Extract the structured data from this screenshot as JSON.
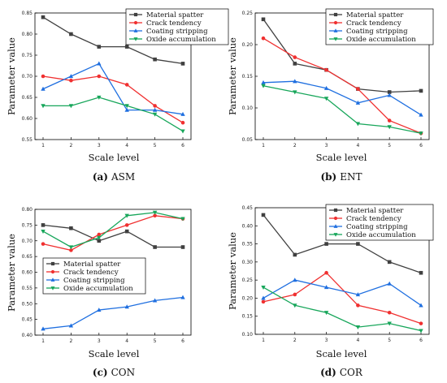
{
  "figure": {
    "legend": [
      "Material spatter",
      "Crack tendency",
      "Coating stripping",
      "Oxide accumulation"
    ],
    "series_colors": [
      "#404040",
      "#f03030",
      "#1f6fe0",
      "#17a65a"
    ]
  },
  "chart_data": [
    {
      "type": "line",
      "caption_letter": "(a)",
      "caption_name": "ASM",
      "xlabel": "Scale level",
      "ylabel": "Parameter value",
      "x": [
        1,
        2,
        3,
        4,
        5,
        6
      ],
      "ylim": [
        0.55,
        0.85
      ],
      "yticks": [
        "0.55",
        "0.60",
        "0.65",
        "0.70",
        "0.75",
        "0.80",
        "0.85"
      ],
      "yticks_values": [
        0.55,
        0.6,
        0.65,
        0.7,
        0.75,
        0.8,
        0.85
      ],
      "legend_position": "top-right",
      "grid": false,
      "series": [
        {
          "name": "Material spatter",
          "values": [
            0.84,
            0.8,
            0.77,
            0.77,
            0.74,
            0.73
          ]
        },
        {
          "name": "Crack tendency",
          "values": [
            0.7,
            0.69,
            0.7,
            0.68,
            0.63,
            0.59
          ]
        },
        {
          "name": "Coating stripping",
          "values": [
            0.67,
            0.7,
            0.73,
            0.62,
            0.62,
            0.61
          ]
        },
        {
          "name": "Oxide accumulation",
          "values": [
            0.63,
            0.63,
            0.65,
            0.63,
            0.61,
            0.57
          ]
        }
      ]
    },
    {
      "type": "line",
      "caption_letter": "(b)",
      "caption_name": "ENT",
      "xlabel": "Scale level",
      "ylabel": "Parameter value",
      "x": [
        1,
        2,
        3,
        4,
        5,
        6
      ],
      "ylim": [
        0.05,
        0.25
      ],
      "yticks": [
        "0.05",
        "0.10",
        "0.15",
        "0.20",
        "0.25"
      ],
      "yticks_values": [
        0.05,
        0.1,
        0.15,
        0.2,
        0.25
      ],
      "legend_position": "top-right",
      "grid": false,
      "series": [
        {
          "name": "Material spatter",
          "values": [
            0.24,
            0.17,
            0.16,
            0.13,
            0.125,
            0.127
          ]
        },
        {
          "name": "Crack tendency",
          "values": [
            0.21,
            0.18,
            0.16,
            0.13,
            0.08,
            0.06
          ]
        },
        {
          "name": "Coating stripping",
          "values": [
            0.14,
            0.142,
            0.131,
            0.108,
            0.12,
            0.089
          ]
        },
        {
          "name": "Oxide accumulation",
          "values": [
            0.135,
            0.125,
            0.115,
            0.075,
            0.07,
            0.06
          ]
        }
      ]
    },
    {
      "type": "line",
      "caption_letter": "(c)",
      "caption_name": "CON",
      "xlabel": "Scale level",
      "ylabel": "Parameter value",
      "x": [
        1,
        2,
        3,
        4,
        5,
        6
      ],
      "ylim": [
        0.4,
        0.8
      ],
      "yticks": [
        "0.40",
        "0.45",
        "0.50",
        "0.55",
        "0.60",
        "0.65",
        "0.70",
        "0.75",
        "0.80"
      ],
      "yticks_values": [
        0.4,
        0.45,
        0.5,
        0.55,
        0.6,
        0.65,
        0.7,
        0.75,
        0.8
      ],
      "legend_position": "middle-right",
      "grid": false,
      "series": [
        {
          "name": "Material spatter",
          "values": [
            0.75,
            0.74,
            0.7,
            0.73,
            0.68,
            0.68
          ]
        },
        {
          "name": "Crack tendency",
          "values": [
            0.69,
            0.67,
            0.72,
            0.75,
            0.78,
            0.77
          ]
        },
        {
          "name": "Coating stripping",
          "values": [
            0.42,
            0.43,
            0.48,
            0.49,
            0.51,
            0.52
          ]
        },
        {
          "name": "Oxide accumulation",
          "values": [
            0.73,
            0.68,
            0.71,
            0.78,
            0.79,
            0.77
          ]
        }
      ]
    },
    {
      "type": "line",
      "caption_letter": "(d)",
      "caption_name": "COR",
      "xlabel": "Scale level",
      "ylabel": "Parameter value",
      "x": [
        1,
        2,
        3,
        4,
        5,
        6
      ],
      "ylim": [
        0.1,
        0.45
      ],
      "yticks": [
        "0.10",
        "0.15",
        "0.20",
        "0.25",
        "0.30",
        "0.35",
        "0.40",
        "0.45"
      ],
      "yticks_values": [
        0.1,
        0.15,
        0.2,
        0.25,
        0.3,
        0.35,
        0.4,
        0.45
      ],
      "legend_position": "top-right",
      "grid": false,
      "series": [
        {
          "name": "Material spatter",
          "values": [
            0.43,
            0.32,
            0.35,
            0.35,
            0.3,
            0.27
          ]
        },
        {
          "name": "Crack tendency",
          "values": [
            0.19,
            0.21,
            0.27,
            0.18,
            0.16,
            0.13
          ]
        },
        {
          "name": "Coating stripping",
          "values": [
            0.2,
            0.25,
            0.23,
            0.21,
            0.24,
            0.18
          ]
        },
        {
          "name": "Oxide accumulation",
          "values": [
            0.23,
            0.18,
            0.16,
            0.12,
            0.13,
            0.11
          ]
        }
      ]
    }
  ]
}
